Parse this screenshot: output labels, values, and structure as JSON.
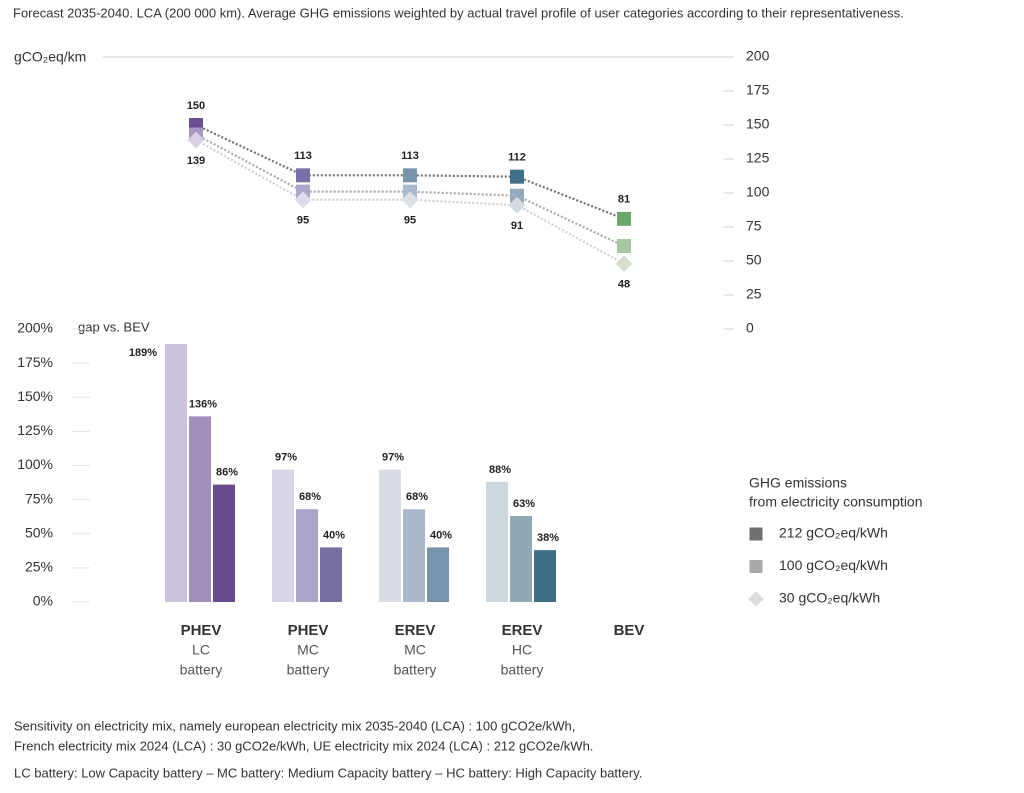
{
  "header": "Forecast 2035-2040. LCA (200 000 km). Average GHG emissions weighted by actual travel profile of user categories according to their representativeness.",
  "chart_data": [
    {
      "type": "line",
      "y_label": "gCO₂eq/km",
      "categories": [
        null,
        null,
        null,
        null,
        null
      ],
      "ylim": [
        0,
        200
      ],
      "yticks": [
        0,
        25,
        50,
        75,
        100,
        125,
        150,
        175,
        200
      ],
      "axis_side": "right",
      "series": [
        {
          "color": "#707070",
          "marker": "square",
          "labels": "above",
          "values": [
            150,
            113,
            113,
            112,
            81
          ],
          "point_colors": [
            "#6b4e90",
            "#7770a4",
            "#7a94ac",
            "#41718a",
            "#6aa56a"
          ]
        },
        {
          "color": "#a8a8a8",
          "marker": "square",
          "labels": "none",
          "values": [
            143,
            101,
            101,
            98,
            61
          ],
          "point_colors": [
            "#a897c0",
            "#aba8cb",
            "#a9b9cc",
            "#93abba",
            "#a8c6a0"
          ]
        },
        {
          "color": "#d0d0d0",
          "marker": "diamond",
          "labels": "below",
          "values": [
            139,
            95,
            95,
            91,
            48
          ],
          "point_colors": [
            "#d8cfe3",
            "#dcdde6",
            "#dcdfe4",
            "#d2dce0",
            "#d5e0d1"
          ]
        }
      ]
    },
    {
      "type": "bar",
      "y_label": "gap vs. BEV",
      "categories": [
        [
          "PHEV",
          "LC",
          "battery"
        ],
        [
          "PHEV",
          "MC",
          "battery"
        ],
        [
          "EREV",
          "MC",
          "battery"
        ],
        [
          "EREV",
          "HC",
          "battery"
        ],
        [
          "BEV"
        ]
      ],
      "ylim": [
        0,
        200
      ],
      "yticks": [
        {
          "value": 0,
          "label": "0%"
        },
        {
          "value": 25,
          "label": "25%"
        },
        {
          "value": 50,
          "label": "50%"
        },
        {
          "value": 75,
          "label": "75%"
        },
        {
          "value": 100,
          "label": "100%"
        },
        {
          "value": 125,
          "label": "125%"
        },
        {
          "value": 150,
          "label": "150%"
        },
        {
          "value": 175,
          "label": "175%"
        },
        {
          "value": 200,
          "label": "200%"
        }
      ],
      "legend_title": [
        "GHG emissions",
        "from electricity consumption"
      ],
      "series": [
        {
          "name": "30 gCO₂eq/kWh",
          "color": "#dcdcdc",
          "marker": "diamond",
          "values": [
            189,
            97,
            97,
            88,
            null
          ],
          "value_labels": [
            "189%",
            "97%",
            "97%",
            "88%",
            null
          ],
          "point_colors": [
            "#cdc3dc",
            "#d8d5e6",
            "#d7dde3",
            "#cad7dd",
            null
          ]
        },
        {
          "name": "100 gCO₂eq/kWh",
          "color": "#a8a8a8",
          "marker": "square",
          "values": [
            136,
            68,
            68,
            63,
            null
          ],
          "value_labels": [
            "136%",
            "68%",
            "68%",
            "63%",
            null
          ],
          "point_colors": [
            "#a08ebb",
            "#a9a4c8",
            "#a9b9cb",
            "#8fa9b7",
            null
          ]
        },
        {
          "name": "212 gCO₂eq/kWh",
          "color": "#707070",
          "marker": "square",
          "values": [
            86,
            40,
            40,
            38,
            null
          ],
          "value_labels": [
            "86%",
            "40%",
            "40%",
            "38%",
            null
          ],
          "point_colors": [
            "#6a4a8e",
            "#7670a2",
            "#7893ab",
            "#3f6f86",
            null
          ]
        }
      ],
      "legend_order": [
        2,
        1,
        0
      ]
    }
  ],
  "footnotes": [
    "Sensitivity on electricity mix, namely european electricity mix 2035-2040 (LCA) : 100 gCO2e/kWh,",
    "French electricity mix 2024 (LCA) : 30 gCO2e/kWh, UE electricity mix 2024 (LCA) : 212 gCO2e/kWh.",
    "LC battery: Low Capacity battery – MC battery: Medium Capacity  battery – HC battery: High Capacity battery."
  ]
}
